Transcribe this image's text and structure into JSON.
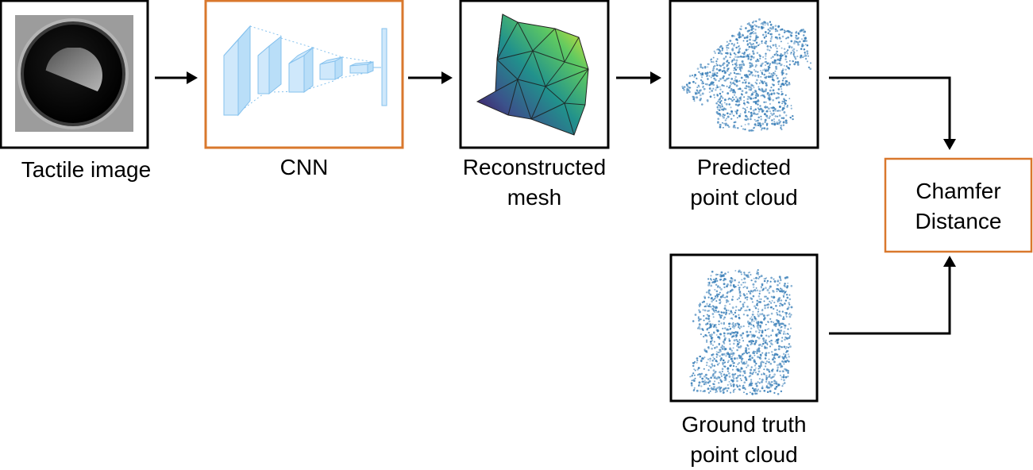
{
  "nodes": {
    "tactile_image": {
      "label": "Tactile image"
    },
    "cnn": {
      "label": "CNN"
    },
    "reconstructed_mesh": {
      "line1": "Reconstructed",
      "line2": "mesh"
    },
    "predicted_point_cloud": {
      "line1": "Predicted",
      "line2": "point cloud"
    },
    "chamfer_distance": {
      "line1": "Chamfer",
      "line2": "Distance"
    },
    "ground_truth_point_cloud": {
      "line1": "Ground truth",
      "line2": "point cloud"
    }
  },
  "colors": {
    "box_border": "#000000",
    "highlight_border": "#d9782d",
    "arrow": "#000000",
    "cnn_layer_fill": "#cfe8fb",
    "cnn_layer_stroke": "#86c2ee",
    "point_cloud": "#3a7fb8"
  },
  "icons": {
    "tactile": "tactile-sensor-image-icon",
    "cnn": "cnn-layers-icon",
    "mesh": "triangle-mesh-surface-icon",
    "predicted": "point-cloud-scatter-icon",
    "ground_truth": "point-cloud-scatter-icon"
  }
}
